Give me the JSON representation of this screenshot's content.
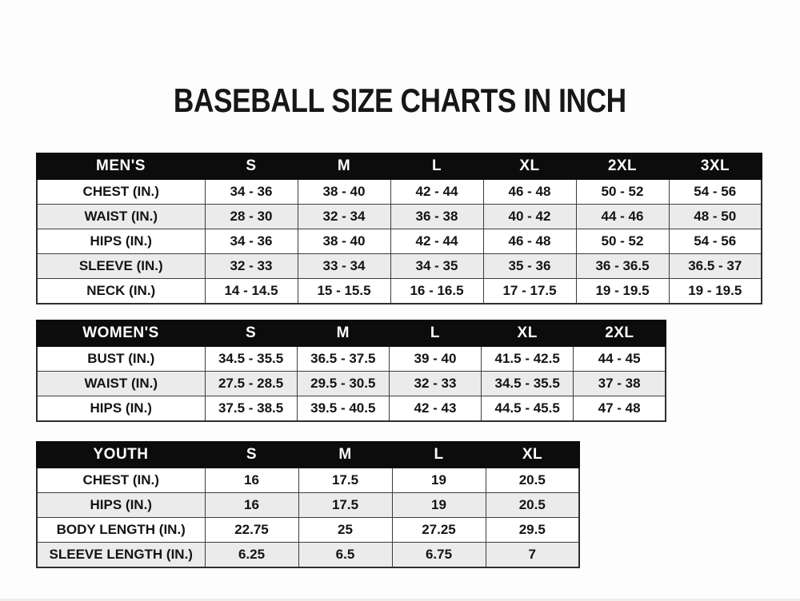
{
  "page": {
    "title": "BASEBALL SIZE CHARTS IN INCH"
  },
  "colors": {
    "header_bg": "#0c0c0c",
    "header_text": "#ffffff",
    "row_white": "#ffffff",
    "row_alt": "#ebebeb",
    "border": "#3d3d3d",
    "text": "#141414"
  },
  "tables": [
    {
      "name": "mens",
      "header": [
        "MEN'S",
        "S",
        "M",
        "L",
        "XL",
        "2XL",
        "3XL"
      ],
      "rows": [
        [
          "CHEST (IN.)",
          "34 - 36",
          "38 - 40",
          "42 - 44",
          "46 - 48",
          "50 - 52",
          "54 - 56"
        ],
        [
          "WAIST (IN.)",
          "28 - 30",
          "32 - 34",
          "36 - 38",
          "40 - 42",
          "44 - 46",
          "48 - 50"
        ],
        [
          "HIPS (IN.)",
          "34 - 36",
          "38 - 40",
          "42 - 44",
          "46 - 48",
          "50 - 52",
          "54 - 56"
        ],
        [
          "SLEEVE (IN.)",
          "32 - 33",
          "33 - 34",
          "34 - 35",
          "35 - 36",
          "36 - 36.5",
          "36.5 - 37"
        ],
        [
          "NECK (IN.)",
          "14 - 14.5",
          "15 - 15.5",
          "16 - 16.5",
          "17 - 17.5",
          "19 - 19.5",
          "19 - 19.5"
        ]
      ]
    },
    {
      "name": "womens",
      "header": [
        "WOMEN'S",
        "S",
        "M",
        "L",
        "XL",
        "2XL"
      ],
      "rows": [
        [
          "BUST (IN.)",
          "34.5 - 35.5",
          "36.5 - 37.5",
          "39 - 40",
          "41.5 - 42.5",
          "44 - 45"
        ],
        [
          "WAIST (IN.)",
          "27.5 - 28.5",
          "29.5 - 30.5",
          "32 - 33",
          "34.5 - 35.5",
          "37 - 38"
        ],
        [
          "HIPS (IN.)",
          "37.5 - 38.5",
          "39.5 - 40.5",
          "42 - 43",
          "44.5 - 45.5",
          "47 - 48"
        ]
      ]
    },
    {
      "name": "youth",
      "header": [
        "YOUTH",
        "S",
        "M",
        "L",
        "XL"
      ],
      "rows": [
        [
          "CHEST (IN.)",
          "16",
          "17.5",
          "19",
          "20.5"
        ],
        [
          "HIPS (IN.)",
          "16",
          "17.5",
          "19",
          "20.5"
        ],
        [
          "BODY LENGTH (IN.)",
          "22.75",
          "25",
          "27.25",
          "29.5"
        ],
        [
          "SLEEVE LENGTH (IN.)",
          "6.25",
          "6.5",
          "6.75",
          "7"
        ]
      ]
    }
  ]
}
